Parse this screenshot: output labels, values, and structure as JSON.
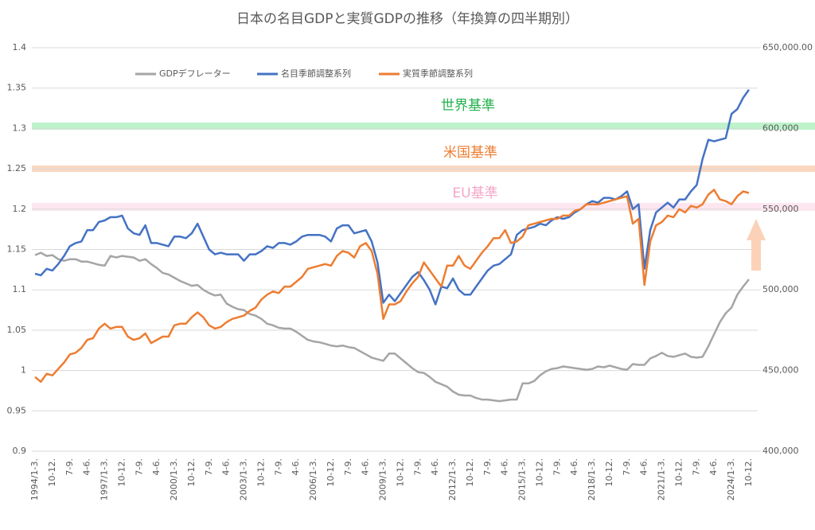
{
  "chart_data": {
    "type": "line",
    "title": "日本の名目GDPと実質GDPの推移（年換算の四半期別）",
    "annotations": [
      "世界基準",
      "米国基準",
      "EU基準"
    ],
    "categories": [
      "1994/1-3.",
      null,
      null,
      "10-12.",
      null,
      null,
      "7-9.",
      null,
      null,
      "4-6.",
      null,
      null,
      "1997/1-3.",
      null,
      null,
      "10-12.",
      null,
      null,
      "7-9.",
      null,
      null,
      "4-6.",
      null,
      null,
      "2000/1-3.",
      null,
      null,
      "10-12.",
      null,
      null,
      "7-9.",
      null,
      null,
      "4-6.",
      null,
      null,
      "2003/1-3.",
      null,
      null,
      "10-12.",
      null,
      null,
      "7-9.",
      null,
      null,
      "4-6.",
      null,
      null,
      "2006/1-3.",
      null,
      null,
      "10-12.",
      null,
      null,
      "7-9.",
      null,
      null,
      "4-6.",
      null,
      null,
      "2009/1-3.",
      null,
      null,
      "10-12.",
      null,
      null,
      "7-9.",
      null,
      null,
      "4-6.",
      null,
      null,
      "2012/1-3.",
      null,
      null,
      "10-12.",
      null,
      null,
      "7-9.",
      null,
      null,
      "4-6.",
      null,
      null,
      "2015/1-3.",
      null,
      null,
      "10-12.",
      null,
      null,
      "7-9.",
      null,
      null,
      "4-6.",
      null,
      null,
      "2018/1-3.",
      null,
      null,
      "10-12.",
      null,
      null,
      "7-9.",
      null,
      null,
      "4-6.",
      null,
      null,
      "2021/1-3.",
      null,
      null,
      "10-12.",
      null,
      null,
      "7-9.",
      null,
      null,
      "4-6.",
      null,
      null,
      "2024/1-3.",
      null,
      null,
      "10-12."
    ],
    "series": [
      {
        "name": "GDPデフレーター",
        "color": "#a5a5a5",
        "axis": "y",
        "values": [
          1.143,
          1.146,
          1.142,
          1.143,
          1.138,
          1.136,
          1.138,
          1.138,
          1.135,
          1.135,
          1.133,
          1.131,
          1.13,
          1.142,
          1.14,
          1.142,
          1.141,
          1.14,
          1.136,
          1.138,
          1.132,
          1.127,
          1.121,
          1.119,
          1.115,
          1.111,
          1.108,
          1.105,
          1.106,
          1.1,
          1.096,
          1.093,
          1.094,
          1.083,
          1.079,
          1.076,
          1.075,
          1.07,
          1.068,
          1.064,
          1.058,
          1.056,
          1.053,
          1.052,
          1.052,
          1.048,
          1.043,
          1.038,
          1.036,
          1.035,
          1.033,
          1.031,
          1.03,
          1.031,
          1.029,
          1.028,
          1.024,
          1.02,
          1.016,
          1.014,
          1.012,
          1.021,
          1.021,
          1.015,
          1.009,
          1.003,
          0.998,
          0.997,
          0.992,
          0.986,
          0.983,
          0.98,
          0.974,
          0.97,
          0.969,
          0.969,
          0.966,
          0.964,
          0.964,
          0.963,
          0.962,
          0.963,
          0.964,
          0.964,
          0.984,
          0.984,
          0.987,
          0.994,
          0.999,
          1.002,
          1.003,
          1.005,
          1.004,
          1.003,
          1.002,
          1.001,
          1.002,
          1.005,
          1.004,
          1.006,
          1.004,
          1.002,
          1.001,
          1.008,
          1.007,
          1.007,
          1.015,
          1.018,
          1.022,
          1.018,
          1.017,
          1.019,
          1.021,
          1.017,
          1.016,
          1.017,
          1.03,
          1.045,
          1.06,
          1.071,
          1.078,
          1.094,
          1.104,
          1.113
        ]
      },
      {
        "name": "名目季節調整系列",
        "color": "#4472c4",
        "axis": "y2",
        "values": [
          510000,
          509000,
          513000,
          512000,
          516000,
          521000,
          527000,
          529000,
          530000,
          537000,
          537000,
          542000,
          543000,
          545000,
          545000,
          546000,
          538000,
          535000,
          534000,
          540000,
          529000,
          529000,
          528000,
          527000,
          533000,
          533000,
          532000,
          535000,
          541000,
          533000,
          525000,
          522000,
          523000,
          522000,
          522000,
          522000,
          518000,
          522000,
          522000,
          524000,
          527000,
          526000,
          529000,
          529000,
          528000,
          530000,
          533000,
          534000,
          534000,
          534000,
          533000,
          530000,
          538000,
          540000,
          540000,
          535000,
          536000,
          537000,
          530000,
          517000,
          492000,
          497000,
          493000,
          498000,
          503000,
          508000,
          511000,
          506000,
          500000,
          491000,
          502000,
          501000,
          507000,
          500000,
          497000,
          497000,
          502000,
          507000,
          512000,
          515000,
          516000,
          519000,
          522000,
          534000,
          537000,
          538000,
          539000,
          541000,
          540000,
          543000,
          545000,
          544000,
          545000,
          548000,
          550000,
          553000,
          555000,
          554000,
          557000,
          557000,
          556000,
          558000,
          561000,
          550000,
          553000,
          513000,
          537000,
          548000,
          551000,
          554000,
          551000,
          556000,
          556000,
          561000,
          565000,
          581000,
          593000,
          592000,
          593000,
          594000,
          609000,
          612000,
          619000,
          624000
        ]
      },
      {
        "name": "実質季節調整系列",
        "color": "#ed7d31",
        "axis": "y2",
        "values": [
          446000,
          443000,
          448000,
          447000,
          451000,
          455000,
          460000,
          461000,
          464000,
          469000,
          470000,
          476000,
          479000,
          476000,
          477000,
          477000,
          471000,
          469000,
          470000,
          473000,
          467000,
          469000,
          471000,
          471000,
          478000,
          479000,
          479000,
          483000,
          486000,
          483000,
          478000,
          476000,
          477000,
          480000,
          482000,
          483000,
          484000,
          487000,
          489000,
          494000,
          497000,
          499000,
          498000,
          502000,
          502000,
          505000,
          508000,
          513000,
          514000,
          515000,
          516000,
          515000,
          521000,
          524000,
          523000,
          520000,
          527000,
          529000,
          524000,
          510000,
          482000,
          491000,
          491000,
          493000,
          499000,
          504000,
          508000,
          517000,
          512000,
          507000,
          502000,
          515000,
          515000,
          521000,
          515000,
          513000,
          518000,
          523000,
          527000,
          532000,
          532000,
          537000,
          529000,
          530000,
          533000,
          540000,
          541000,
          542000,
          543000,
          544000,
          544000,
          546000,
          546000,
          549000,
          550000,
          553000,
          553000,
          553000,
          554000,
          555000,
          556000,
          557000,
          558000,
          541000,
          544000,
          503000,
          530000,
          540000,
          542000,
          546000,
          545000,
          550000,
          548000,
          552000,
          551000,
          553000,
          559000,
          562000,
          556000,
          555000,
          553000,
          558000,
          561000,
          560000
        ]
      }
    ],
    "ylim": [
      0.9,
      1.4
    ],
    "yticks": [
      0.9,
      0.95,
      1,
      1.05,
      1.1,
      1.15,
      1.2,
      1.25,
      1.3,
      1.35,
      1.4
    ],
    "y2lim": [
      400000,
      650000
    ],
    "y2ticks": [
      {
        "value": 400000,
        "label": "400,000"
      },
      {
        "value": 450000,
        "label": "450,000"
      },
      {
        "value": 500000,
        "label": "500,000"
      },
      {
        "value": 550000,
        "label": "550,000"
      },
      {
        "value": 600000,
        "label": "600,000"
      },
      {
        "value": 650000,
        "label": "650,000.00"
      }
    ],
    "grid": true,
    "legend": "top"
  }
}
